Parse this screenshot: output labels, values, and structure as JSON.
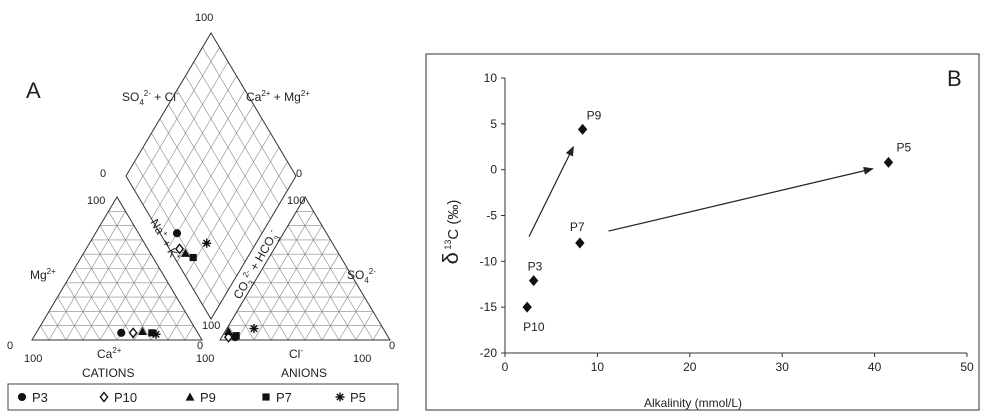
{
  "chart_data": [
    {
      "panel_label": "A",
      "type": "scatter",
      "subtype": "piper",
      "labels": {
        "cations": "CATIONS",
        "anions": "ANIONS",
        "ca": "Ca2+",
        "mg": "Mg2+",
        "cl": "Cl-",
        "so4": "SO42-",
        "so4_cl": "SO42- + Cl-",
        "ca_mg": "Ca2+ + Mg2+",
        "na_k": "Na+ + K+",
        "co3_hco3": "CO32- + HCO3-",
        "v100": "100",
        "v0": "0"
      },
      "legend_position": "bottom",
      "series": [
        {
          "name": "P3",
          "marker": "circle",
          "cation": {
            "Ca": 45,
            "Mg": 5,
            "NaK": 50
          },
          "anion": {
            "Cl": 8,
            "SO4": 2,
            "HCO3": 90
          },
          "diamond": {
            "NaK": 50,
            "HCO3": 90
          }
        },
        {
          "name": "P10",
          "marker": "open-diamond",
          "cation": {
            "Ca": 38,
            "Mg": 5,
            "NaK": 57
          },
          "anion": {
            "Cl": 4,
            "SO4": 2,
            "HCO3": 94
          },
          "diamond": {
            "NaK": 57,
            "HCO3": 94
          }
        },
        {
          "name": "P9",
          "marker": "triangle",
          "cation": {
            "Ca": 32,
            "Mg": 6,
            "NaK": 62
          },
          "anion": {
            "Cl": 2,
            "SO4": 6,
            "HCO3": 92
          },
          "diamond": {
            "NaK": 62,
            "HCO3": 92
          }
        },
        {
          "name": "P7",
          "marker": "square",
          "cation": {
            "Ca": 27,
            "Mg": 5,
            "NaK": 68
          },
          "anion": {
            "Cl": 8,
            "SO4": 3,
            "HCO3": 89
          },
          "diamond": {
            "NaK": 68,
            "HCO3": 89
          }
        },
        {
          "name": "P5",
          "marker": "asterisk",
          "cation": {
            "Ca": 25,
            "Mg": 4,
            "NaK": 71
          },
          "anion": {
            "Cl": 16,
            "SO4": 8,
            "HCO3": 76
          },
          "diamond": {
            "NaK": 71,
            "HCO3": 76
          }
        }
      ]
    },
    {
      "panel_label": "B",
      "type": "scatter",
      "xlabel": "Alkalinity (mmol/L)",
      "ylabel": "δ 13C (‰)",
      "xlim": [
        0,
        50
      ],
      "ylim": [
        -20,
        10
      ],
      "xticks": [
        "0",
        "10",
        "20",
        "30",
        "40",
        "50"
      ],
      "yticks": [
        "-20",
        "-15",
        "-10",
        "-5",
        "0",
        "5",
        "10"
      ],
      "marker": "diamond",
      "grid": false,
      "points": [
        {
          "label": "P10",
          "x": 2.4,
          "y": -15.0
        },
        {
          "label": "P3",
          "x": 3.1,
          "y": -12.1
        },
        {
          "label": "P9",
          "x": 8.4,
          "y": 4.4
        },
        {
          "label": "P7",
          "x": 8.1,
          "y": -8.0
        },
        {
          "label": "P5",
          "x": 41.5,
          "y": 0.8
        }
      ],
      "arrows": [
        {
          "from": [
            2.6,
            -7.3
          ],
          "to": [
            7.4,
            2.5
          ]
        },
        {
          "from": [
            11.2,
            -6.7
          ],
          "to": [
            39.8,
            0.1
          ]
        }
      ]
    }
  ]
}
